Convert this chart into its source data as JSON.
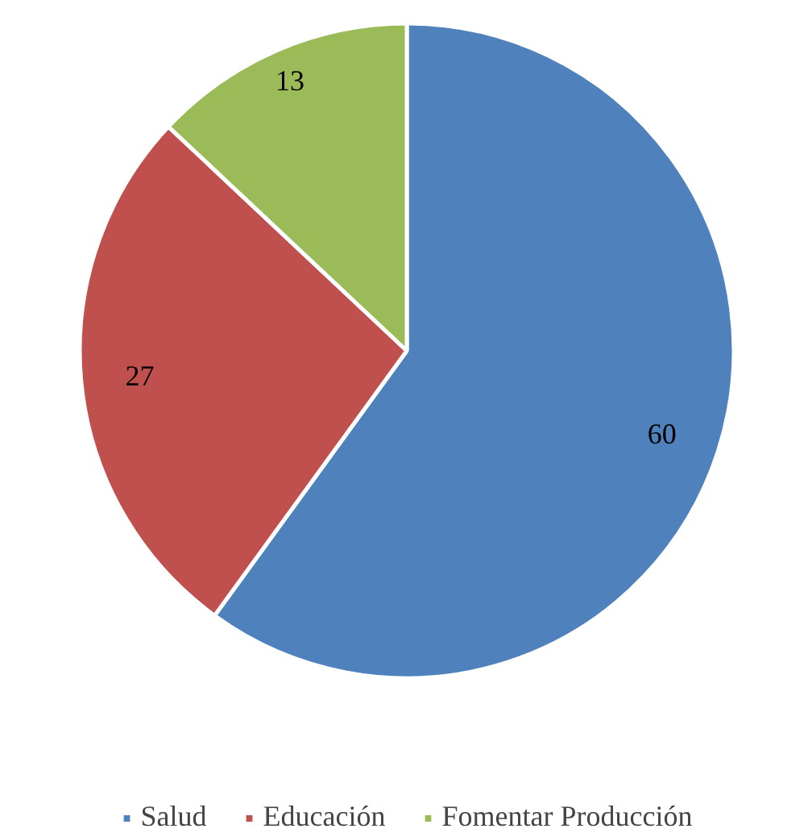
{
  "chart_data": {
    "type": "pie",
    "categories": [
      "Salud",
      "Educación",
      "Fomentar Producción"
    ],
    "values": [
      60,
      27,
      13
    ],
    "colors": [
      "#4f81bd",
      "#c0504d",
      "#9bbb59"
    ],
    "data_labels": true,
    "legend": "bottom"
  }
}
